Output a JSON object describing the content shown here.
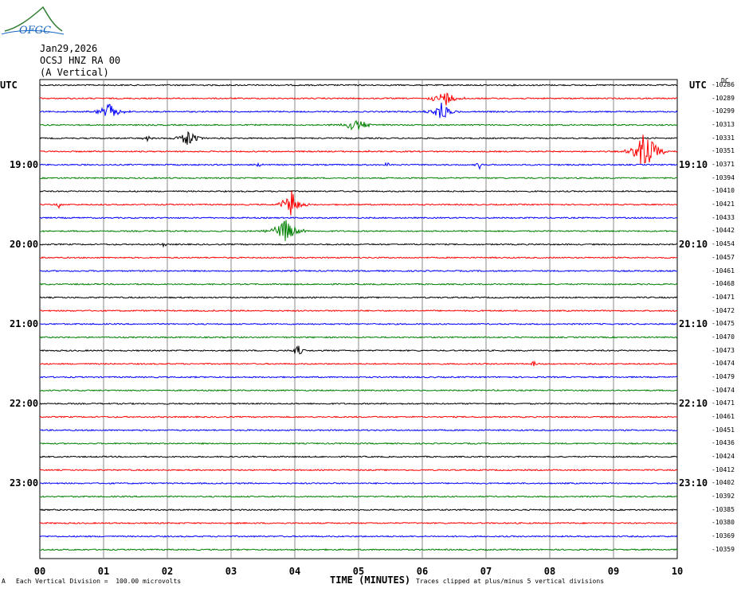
{
  "logo_text": "OFGC",
  "header": {
    "date": "Jan29,2026",
    "station": "OCSJ HNZ RA 00",
    "component": "(A Vertical)"
  },
  "utc_left": "UTC",
  "utc_right": "UTC",
  "dc_label": "DC",
  "colors": [
    "#000000",
    "#ff0000",
    "#0000ff",
    "#008000"
  ],
  "chart_data": {
    "type": "line",
    "xlabel": "TIME (MINUTES)",
    "xlim": [
      0,
      10
    ],
    "xticks": [
      "00",
      "01",
      "02",
      "03",
      "04",
      "05",
      "06",
      "07",
      "08",
      "09",
      "10"
    ],
    "left_time_labels": [
      {
        "row": 6,
        "label": "19:00"
      },
      {
        "row": 12,
        "label": "20:00"
      },
      {
        "row": 18,
        "label": "21:00"
      },
      {
        "row": 24,
        "label": "22:00"
      },
      {
        "row": 30,
        "label": "23:00"
      }
    ],
    "right_time_labels": [
      {
        "row": 6,
        "label": "19:10"
      },
      {
        "row": 12,
        "label": "20:10"
      },
      {
        "row": 18,
        "label": "21:10"
      },
      {
        "row": 24,
        "label": "22:10"
      },
      {
        "row": 30,
        "label": "23:10"
      }
    ],
    "trace_offsets": [
      "-10286",
      "-10289",
      "-10299",
      "-10313",
      "-10331",
      "-10351",
      "-10371",
      "-10394",
      "-10410",
      "-10421",
      "-10433",
      "-10442",
      "-10454",
      "-10457",
      "-10461",
      "-10468",
      "-10471",
      "-10472",
      "-10475",
      "-10470",
      "-10473",
      "-10474",
      "-10479",
      "-10474",
      "-10471",
      "-10461",
      "-10451",
      "-10436",
      "-10424",
      "-10412",
      "-10402",
      "-10392",
      "-10385",
      "-10380",
      "-10369",
      "-10359"
    ],
    "events": [
      {
        "row": 1,
        "x": 6.35,
        "amp": 11,
        "width": 0.12
      },
      {
        "row": 2,
        "x": 1.08,
        "amp": 11,
        "width": 0.12
      },
      {
        "row": 2,
        "x": 6.3,
        "amp": 14,
        "width": 0.1
      },
      {
        "row": 3,
        "x": 4.95,
        "amp": 9,
        "width": 0.14
      },
      {
        "row": 4,
        "x": 2.33,
        "amp": 13,
        "width": 0.1
      },
      {
        "row": 4,
        "x": 1.68,
        "amp": 5,
        "width": 0.04
      },
      {
        "row": 5,
        "x": 9.5,
        "amp": 30,
        "width": 0.12
      },
      {
        "row": 5,
        "x": 5.18,
        "amp": 4,
        "width": 0.03
      },
      {
        "row": 6,
        "x": 3.45,
        "amp": 5,
        "width": 0.03
      },
      {
        "row": 6,
        "x": 5.45,
        "amp": 4,
        "width": 0.03
      },
      {
        "row": 6,
        "x": 6.9,
        "amp": 5,
        "width": 0.03
      },
      {
        "row": 9,
        "x": 3.95,
        "amp": 20,
        "width": 0.1
      },
      {
        "row": 9,
        "x": 0.3,
        "amp": 4,
        "width": 0.03
      },
      {
        "row": 11,
        "x": 3.85,
        "amp": 15,
        "width": 0.14
      },
      {
        "row": 12,
        "x": 1.95,
        "amp": 6,
        "width": 0.02
      },
      {
        "row": 20,
        "x": 4.05,
        "amp": 9,
        "width": 0.05
      },
      {
        "row": 21,
        "x": 7.75,
        "amp": 4,
        "width": 0.04
      }
    ],
    "amplitude_divisions_clip": 5
  },
  "footer": {
    "mark": "A",
    "scale": "Each Vertical Division =  100.00 microvolts",
    "clip": "Traces clipped at plus/minus 5 vertical divisions"
  }
}
